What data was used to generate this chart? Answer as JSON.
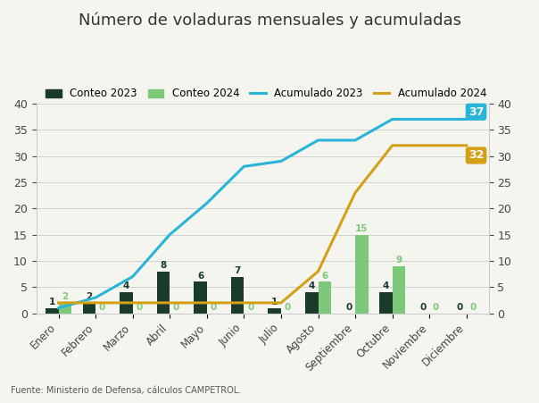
{
  "title": "Número de voladuras mensuales y acumuladas",
  "months": [
    "Enero",
    "Febrero",
    "Marzo",
    "Abril",
    "Mayo",
    "Junio",
    "Julio",
    "Agosto",
    "Septiembre",
    "Octubre",
    "Noviembre",
    "Diciembre"
  ],
  "conteo_2023": [
    1,
    2,
    4,
    8,
    6,
    7,
    1,
    4,
    0,
    4,
    0,
    0
  ],
  "conteo_2024": [
    2,
    0,
    0,
    0,
    0,
    0,
    0,
    6,
    15,
    9,
    0,
    0
  ],
  "acumulado_2023": [
    1,
    3,
    7,
    15,
    21,
    28,
    29,
    33,
    33,
    37,
    37,
    37
  ],
  "acumulado_2024": [
    2,
    2,
    2,
    2,
    2,
    2,
    2,
    8,
    23,
    32,
    32,
    32
  ],
  "color_2023": "#1a3a2a",
  "color_2024": "#7dc87a",
  "color_acum_2023": "#29b5d8",
  "color_acum_2024": "#d4a017",
  "bar_width": 0.35,
  "ylim": [
    0,
    40
  ],
  "background": "#f5f5f0",
  "source_text": "Fuente: Ministerio de Defensa, cálculos CAMPETROL.",
  "source_link": "Ministerio de Defensa",
  "label_2023": "Conteo 2023",
  "label_2024": "Conteo 2024",
  "label_acum_2023": "Acumulado 2023",
  "label_acum_2024": "Acumulado 2024",
  "final_label_2023": "37",
  "final_label_2024": "32",
  "final_bg_2023": "#29b5d8",
  "final_bg_2024": "#d4a017"
}
